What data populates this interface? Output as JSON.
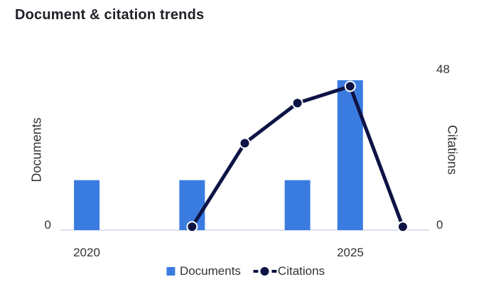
{
  "title": "Document & citation trends",
  "colors": {
    "bar": "#3a7be0",
    "line": "#0d1345",
    "marker_ring": "#ffffff",
    "axis_line": "#dbe1ee",
    "text": "#333333",
    "title": "#1f1f28"
  },
  "left_axis": {
    "label": "Documents",
    "ticks": [
      "0"
    ]
  },
  "right_axis": {
    "label": "Citations",
    "ticks": [
      "48",
      "0"
    ]
  },
  "x_axis": {
    "ticks": [
      "2020",
      "2025"
    ]
  },
  "legend": {
    "items": [
      {
        "label": "Documents"
      },
      {
        "label": "Citations"
      }
    ]
  },
  "chart_data": {
    "type": "bar+line dual-axis",
    "title": "Document & citation trends",
    "x": [
      2020,
      2021,
      2022,
      2023,
      2024,
      2025,
      2026
    ],
    "series": [
      {
        "name": "Documents",
        "type": "bar",
        "axis": "left",
        "points": [
          {
            "x": 2020,
            "y": 1
          },
          {
            "x": 2022,
            "y": 1
          },
          {
            "x": 2024,
            "y": 1
          },
          {
            "x": 2025,
            "y": 3
          }
        ]
      },
      {
        "name": "Citations",
        "type": "line",
        "axis": "right",
        "points": [
          {
            "x": 2022,
            "y": 1
          },
          {
            "x": 2023,
            "y": 26
          },
          {
            "x": 2024,
            "y": 38
          },
          {
            "x": 2025,
            "y": 43
          },
          {
            "x": 2026,
            "y": 1
          }
        ]
      }
    ],
    "left_ylim": [
      0,
      3
    ],
    "right_ylim": [
      0,
      48
    ],
    "xlim": [
      2019.5,
      2026.5
    ],
    "grid": false,
    "legend_position": "bottom"
  }
}
